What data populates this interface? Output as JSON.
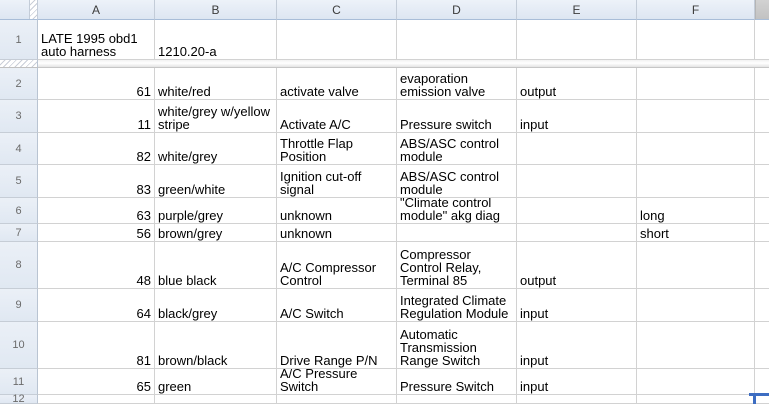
{
  "sheet": {
    "column_headers": {
      "A": "A",
      "B": "B",
      "C": "C",
      "D": "D",
      "E": "E",
      "F": "F"
    },
    "rows": [
      {
        "num": "1",
        "A": "LATE 1995 obd1 auto harness",
        "B": "1210.20-a",
        "C": "",
        "D": "",
        "E": "",
        "F": ""
      },
      {
        "num": "2",
        "A": "61",
        "B": "white/red",
        "C": "activate valve",
        "D": "evaporation emission valve",
        "E": "output",
        "F": ""
      },
      {
        "num": "3",
        "A": "11",
        "B": "white/grey w/yellow stripe",
        "C": "Activate A/C",
        "D": "Pressure switch",
        "E": "input",
        "F": ""
      },
      {
        "num": "4",
        "A": "82",
        "B": "white/grey",
        "C": "Throttle Flap Position",
        "D": "ABS/ASC control module",
        "E": "",
        "F": ""
      },
      {
        "num": "5",
        "A": "83",
        "B": "green/white",
        "C": "Ignition cut-off signal",
        "D": "ABS/ASC control module",
        "E": "",
        "F": ""
      },
      {
        "num": "6",
        "A": "63",
        "B": "purple/grey",
        "C": "unknown",
        "D": "\"Climate control module\" akg diag",
        "E": "",
        "F": "long"
      },
      {
        "num": "7",
        "A": "56",
        "B": "brown/grey",
        "C": "unknown",
        "D": "",
        "E": "",
        "F": "short"
      },
      {
        "num": "8",
        "A": "48",
        "B": "blue black",
        "C": "A/C Compressor Control",
        "D": "Compressor Control Relay, Terminal 85",
        "E": "output",
        "F": ""
      },
      {
        "num": "9",
        "A": "64",
        "B": "black/grey",
        "C": "A/C Switch",
        "D": "Integrated Climate Regulation Module",
        "E": "input",
        "F": ""
      },
      {
        "num": "10",
        "A": "81",
        "B": "brown/black",
        "C": "Drive Range P/N",
        "D": "Automatic Transmission Range Switch",
        "E": "input",
        "F": ""
      },
      {
        "num": "11",
        "A": "65",
        "B": "green",
        "C": "A/C Pressure Switch",
        "D": "Pressure Switch",
        "E": "input",
        "F": ""
      },
      {
        "num": "12",
        "A": "",
        "B": "",
        "C": "",
        "D": "",
        "E": "",
        "F": ""
      }
    ],
    "selection_accent_color": "#3d6dc2"
  }
}
